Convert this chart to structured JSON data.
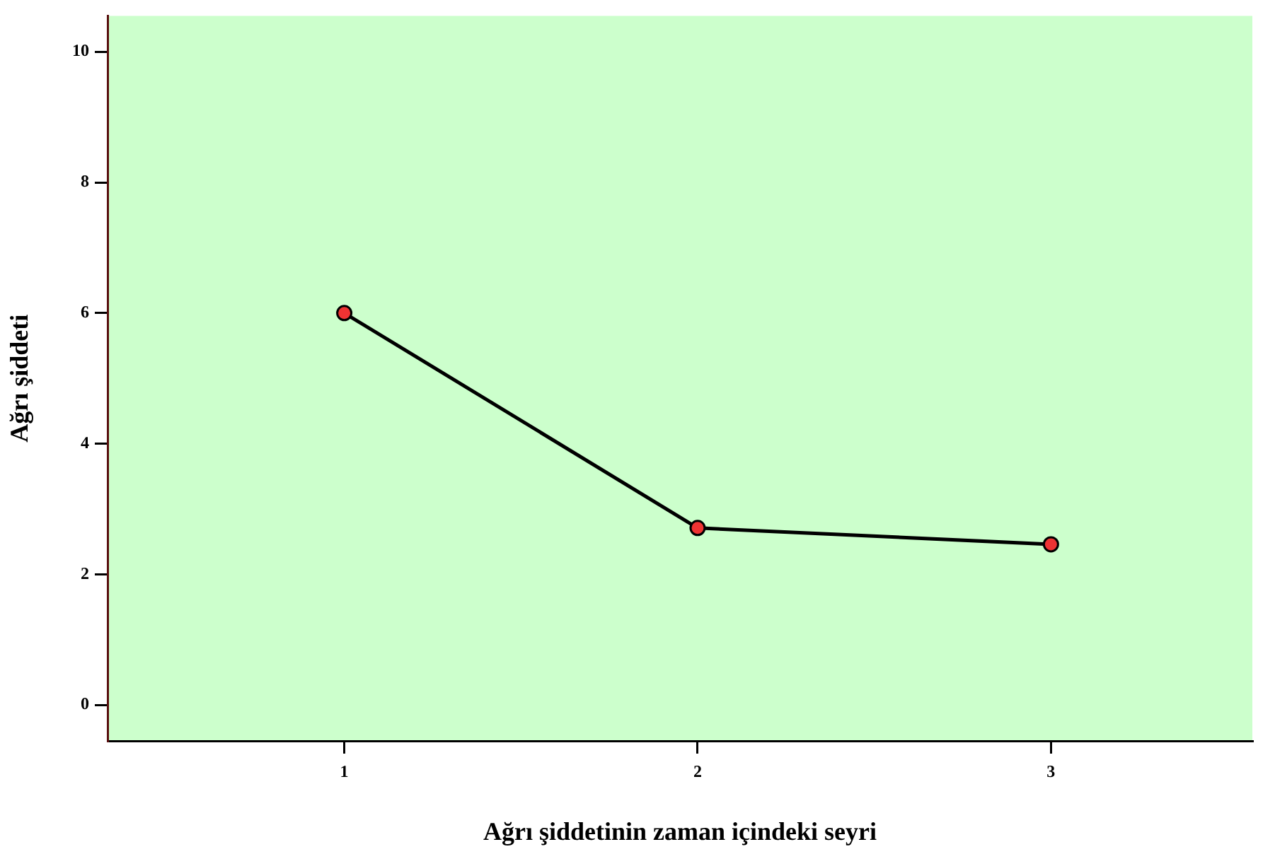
{
  "chart_data": {
    "type": "line",
    "xlabel": "Ağrı şiddetinin zaman içindeki seyri",
    "ylabel": "Ağrı şiddeti",
    "x": [
      1,
      2,
      3
    ],
    "series": [
      {
        "color": "#000000",
        "values": [
          6,
          2.71,
          2.46
        ]
      }
    ],
    "xlim": [
      0.33,
      3.57
    ],
    "xticks": [
      1,
      2,
      3
    ],
    "ylim": [
      -0.55,
      10.55
    ],
    "yticks": [
      0,
      2,
      4,
      6,
      8,
      10
    ],
    "grid": false,
    "legend": false,
    "marker": "circle",
    "line_style": "solid"
  }
}
